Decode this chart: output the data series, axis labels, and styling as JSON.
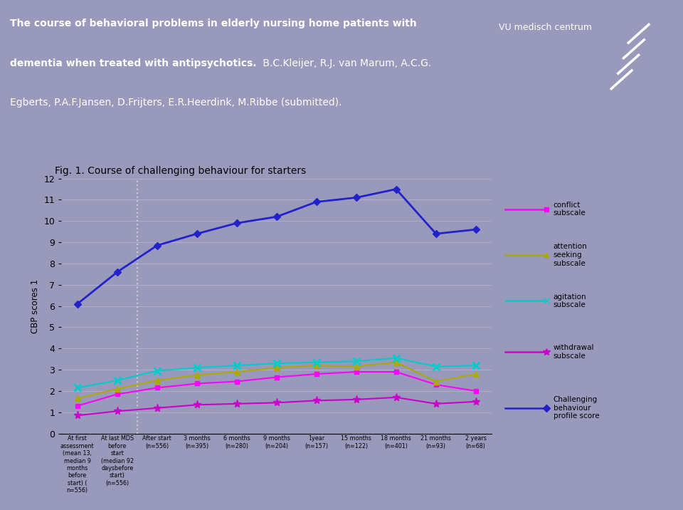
{
  "title": "Fig. 1. Course of challenging behaviour for starters",
  "header_line1_bold": "The course of behavioral problems in elderly nursing home patients with",
  "header_line2_bold": "dementia when treated with antipsychotics.",
  "header_line2_normal": " B.C.Kleijer, R.J. van Marum, A.C.G.",
  "header_line3": "Egberts, P.A.F.Jansen, D.Frijters, E.R.Heerdink, M.Ribbe (submitted).",
  "ylabel": "CBP scores 1",
  "x_labels": [
    "At first\nassessment\n(mean 13,\nmedian 9\nmonths\nbefore\nstart) (\nn=556)",
    "At last MDS\nbefore\nstart\n(median 92\ndaysbefore\nstart)\n(n=556)",
    "After start\n(n=556)",
    "3 months\n(n=395)",
    "6 months\n(n=280)",
    "9 months\n(n=204)",
    "1year\n(n=157)",
    "15 months\n(n=122)",
    "18 months\n(n=401)",
    "21 months\n(n=93)",
    "2 years\n(n=68)"
  ],
  "challenging_behaviour": [
    6.1,
    7.6,
    8.85,
    9.4,
    9.9,
    10.2,
    10.9,
    11.1,
    11.5,
    9.4,
    9.6
  ],
  "conflict": [
    1.3,
    1.85,
    2.15,
    2.35,
    2.45,
    2.65,
    2.8,
    2.9,
    2.9,
    2.3,
    2.0
  ],
  "attention_seeking": [
    1.65,
    2.1,
    2.5,
    2.75,
    2.9,
    3.1,
    3.2,
    3.15,
    3.35,
    2.45,
    2.8
  ],
  "agitation": [
    2.15,
    2.5,
    2.95,
    3.1,
    3.2,
    3.3,
    3.35,
    3.4,
    3.55,
    3.15,
    3.2
  ],
  "withdrawal": [
    0.85,
    1.05,
    1.2,
    1.35,
    1.4,
    1.45,
    1.55,
    1.6,
    1.7,
    1.4,
    1.5
  ],
  "colors": {
    "challenging": "#2222cc",
    "conflict": "#ff00ff",
    "attention": "#aaaa00",
    "agitation": "#00cccc",
    "withdrawal": "#cc00cc"
  },
  "bg_color": "#9999bb",
  "plot_bg": "#9999bb",
  "header_bg": "#3344aa",
  "ylim": [
    0,
    12
  ],
  "yticks": [
    0,
    1,
    2,
    3,
    4,
    5,
    6,
    7,
    8,
    9,
    10,
    11,
    12
  ]
}
